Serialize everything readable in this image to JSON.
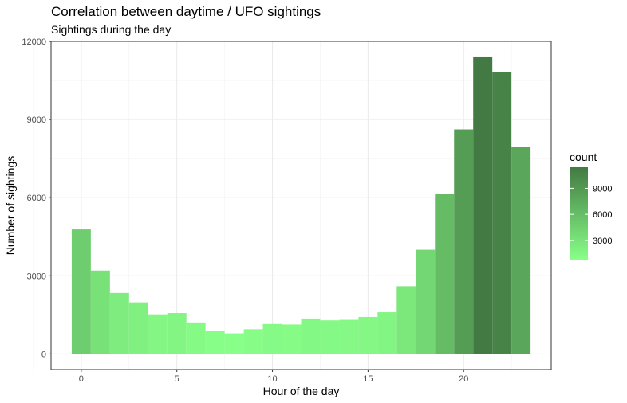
{
  "chart_data": {
    "type": "bar",
    "title": "Correlation between daytime / UFO sightings",
    "subtitle": "Sightings during the day",
    "xlabel": "Hour of the day",
    "ylabel": "Number of sightings",
    "x": [
      0,
      1,
      2,
      3,
      4,
      5,
      6,
      7,
      8,
      9,
      10,
      11,
      12,
      13,
      14,
      15,
      16,
      17,
      18,
      19,
      20,
      21,
      22,
      23
    ],
    "values": [
      4780,
      3200,
      2340,
      1980,
      1520,
      1570,
      1210,
      880,
      790,
      950,
      1150,
      1130,
      1360,
      1290,
      1310,
      1420,
      1600,
      2600,
      4000,
      6140,
      8620,
      11420,
      10820,
      7940
    ],
    "xlim": [
      -0.5,
      23.5
    ],
    "ylim": [
      0,
      12000
    ],
    "xticks": [
      "0",
      "5",
      "10",
      "15",
      "20"
    ],
    "xtick_values": [
      0,
      5,
      10,
      15,
      20
    ],
    "yticks": [
      "0",
      "3000",
      "6000",
      "9000",
      "12000"
    ],
    "ytick_values": [
      0,
      3000,
      6000,
      9000,
      12000
    ],
    "grid": true,
    "legend": {
      "title": "count",
      "placement": "right",
      "labels": [
        "9000",
        "6000",
        "3000"
      ],
      "label_values": [
        9000,
        6000,
        3000
      ],
      "low_color": "#88ff88",
      "high_color": "#437a43"
    }
  }
}
